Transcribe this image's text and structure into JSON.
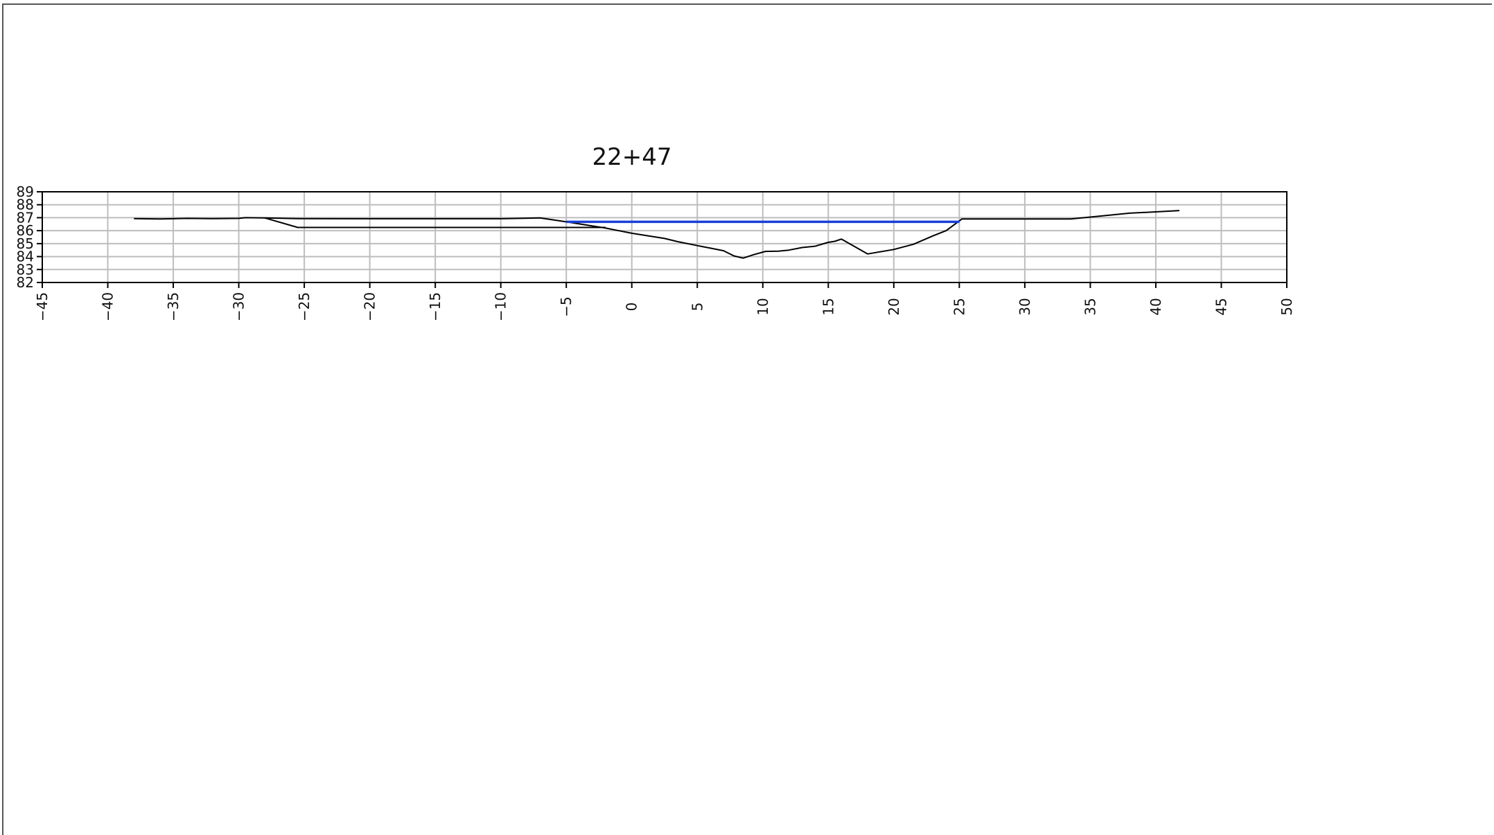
{
  "chart_data": {
    "type": "line",
    "title": "22+47",
    "xlabel": "",
    "ylabel": "",
    "xlim": [
      -45,
      50
    ],
    "ylim": [
      82,
      89
    ],
    "x_ticks": [
      -45,
      -40,
      -35,
      -30,
      -25,
      -20,
      -15,
      -10,
      -5,
      0,
      5,
      10,
      15,
      20,
      25,
      30,
      35,
      40,
      45,
      50
    ],
    "y_ticks": [
      82,
      83,
      84,
      85,
      86,
      87,
      88,
      89
    ],
    "x_tick_labels": [
      "−45",
      "−40",
      "−35",
      "−30",
      "−25",
      "−20",
      "−15",
      "−10",
      "−5",
      "0",
      "5",
      "10",
      "15",
      "20",
      "25",
      "30",
      "35",
      "40",
      "45",
      "50"
    ],
    "y_tick_labels": [
      "82",
      "83",
      "84",
      "85",
      "86",
      "87",
      "88",
      "89"
    ],
    "grid": true,
    "colors": {
      "ground": "#000000",
      "water": "#1a3fd6",
      "grid": "#bdbdbd"
    },
    "series": [
      {
        "key": "ground",
        "points": [
          [
            -38,
            86.93
          ],
          [
            -36,
            86.9
          ],
          [
            -34,
            86.95
          ],
          [
            -32,
            86.93
          ],
          [
            -30,
            86.95
          ],
          [
            -29.5,
            87.0
          ],
          [
            -28,
            86.98
          ],
          [
            -25.5,
            86.93
          ],
          [
            -20,
            86.92
          ],
          [
            -15,
            86.92
          ],
          [
            -10,
            86.92
          ],
          [
            -7,
            86.98
          ],
          [
            -5,
            86.68
          ],
          [
            -2,
            86.2
          ],
          [
            0,
            85.8
          ],
          [
            2.5,
            85.4
          ],
          [
            3.5,
            85.15
          ],
          [
            5,
            84.85
          ],
          [
            6,
            84.65
          ],
          [
            7,
            84.45
          ],
          [
            7.8,
            84.05
          ],
          [
            8.5,
            83.88
          ],
          [
            9.3,
            84.15
          ],
          [
            10.2,
            84.4
          ],
          [
            11.2,
            84.42
          ],
          [
            12,
            84.5
          ],
          [
            13,
            84.7
          ],
          [
            14,
            84.8
          ],
          [
            15,
            85.1
          ],
          [
            15.5,
            85.18
          ],
          [
            16,
            85.35
          ],
          [
            18,
            84.2
          ],
          [
            20,
            84.55
          ],
          [
            21.5,
            84.95
          ],
          [
            23,
            85.6
          ],
          [
            24,
            86.0
          ],
          [
            25.2,
            86.9
          ],
          [
            30,
            86.9
          ],
          [
            33.5,
            86.9
          ],
          [
            35,
            87.05
          ],
          [
            38,
            87.35
          ],
          [
            40,
            87.45
          ],
          [
            41.8,
            87.55
          ]
        ]
      },
      {
        "key": "template",
        "points": [
          [
            -28,
            86.98
          ],
          [
            -25.5,
            86.25
          ],
          [
            -10,
            86.25
          ],
          [
            -2,
            86.25
          ]
        ]
      },
      {
        "key": "water",
        "points": [
          [
            -5,
            86.68
          ],
          [
            25,
            86.68
          ]
        ]
      }
    ]
  }
}
